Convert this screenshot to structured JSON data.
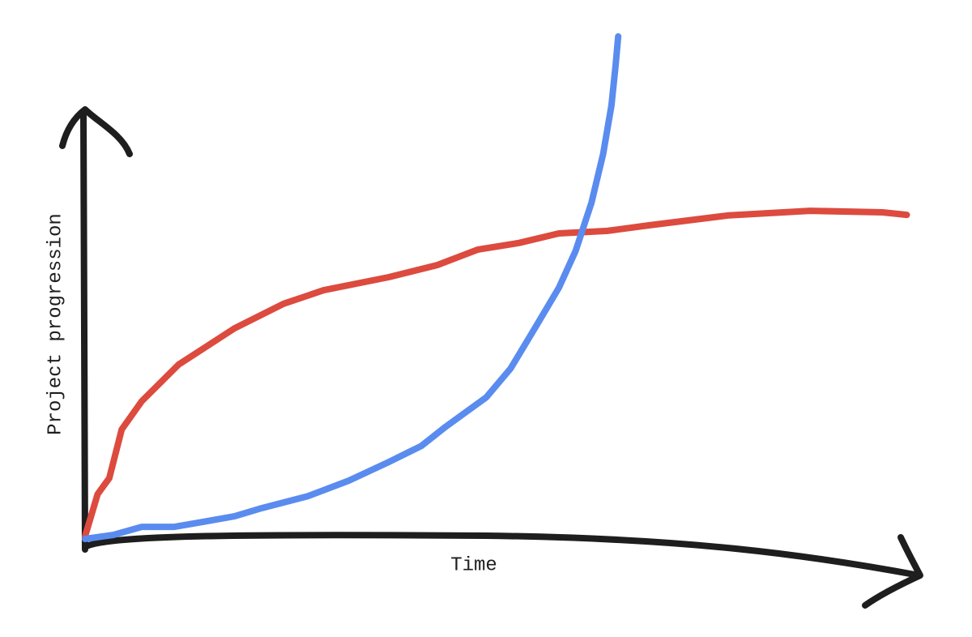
{
  "chart_data": {
    "type": "line",
    "x_label": "Time",
    "y_label": "Project progression",
    "xlim": [
      0,
      100
    ],
    "ylim": [
      0,
      100
    ],
    "series": [
      {
        "color": "#dc4b3e",
        "x": [
          0,
          1.5,
          2.9,
          4.4,
          6.8,
          11.2,
          17.9,
          23.8,
          28.6,
          36.4,
          42.2,
          47.1,
          52.0,
          56.8,
          62.6,
          67.5,
          77.2,
          86.9,
          95.6,
          98.5
        ],
        "values": [
          0.5,
          8.9,
          12.1,
          21.8,
          27.4,
          34.7,
          41.9,
          46.8,
          49.5,
          52.1,
          54.5,
          57.6,
          58.9,
          60.8,
          61.3,
          62.4,
          64.4,
          65.3,
          65.0,
          64.5
        ]
      },
      {
        "color": "#5a8cef",
        "x": [
          0,
          3.4,
          6.8,
          10.7,
          17.9,
          20.9,
          26.7,
          31.6,
          36.4,
          40.3,
          43.2,
          48.1,
          51.0,
          53.9,
          56.8,
          58.8,
          60.7,
          62.1,
          63.1,
          63.6,
          63.9
        ],
        "values": [
          0,
          0.8,
          2.4,
          2.4,
          4.5,
          6.0,
          8.5,
          11.6,
          15.3,
          18.5,
          22.3,
          28.2,
          33.9,
          41.9,
          50.0,
          57.3,
          66.9,
          76.6,
          86.3,
          94.4,
          100
        ]
      }
    ]
  }
}
